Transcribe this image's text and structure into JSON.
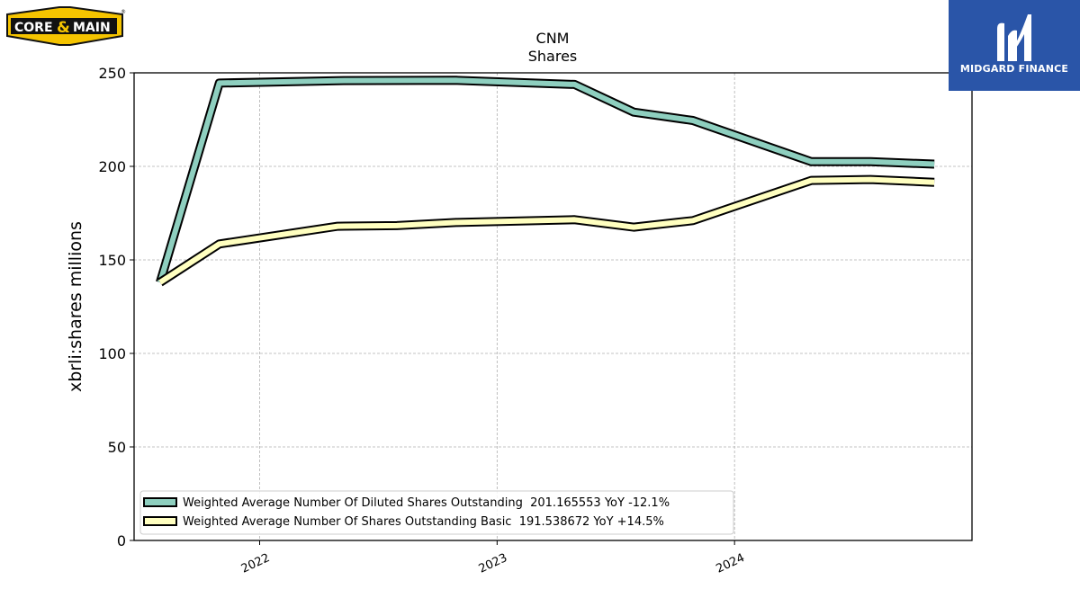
{
  "logos": {
    "left": {
      "text_core": "CORE",
      "text_amp": "&",
      "text_main": "MAIN",
      "registered": "®"
    },
    "right": {
      "text": "MIDGARD FINANCE"
    }
  },
  "colors": {
    "diluted": "#8ecfbf",
    "basic": "#ffffc0",
    "outline": "#000000",
    "grid": "#b0b0b0",
    "logo_yellow": "#f5c400",
    "logo_blue": "#2a55a8"
  },
  "chart_data": {
    "type": "line",
    "title": "CNM",
    "subtitle": "Shares",
    "ylabel": "xbrli:shares millions",
    "xlabel": "",
    "ylim": [
      0,
      250
    ],
    "yticks": [
      0,
      50,
      100,
      150,
      200,
      250
    ],
    "xlim": [
      "2021-06-22",
      "2024-12-31"
    ],
    "xticks": [
      "2022",
      "2023",
      "2024"
    ],
    "grid": true,
    "legend_position": "lower-left",
    "series": [
      {
        "name": "Weighted Average Number Of Diluted Shares Outstanding  201.165553 YoY -12.1%",
        "color": "#8ecfbf",
        "points": [
          [
            "2021-08-01",
            138.0
          ],
          [
            "2021-10-31",
            244.5
          ],
          [
            "2022-05-01",
            245.8
          ],
          [
            "2022-10-30",
            246.0
          ],
          [
            "2023-04-30",
            243.8
          ],
          [
            "2023-07-30",
            229.0
          ],
          [
            "2023-10-29",
            224.5
          ],
          [
            "2024-04-28",
            202.5
          ],
          [
            "2024-07-28",
            202.5
          ],
          [
            "2024-11-03",
            201.2
          ]
        ]
      },
      {
        "name": "Weighted Average Number Of Shares Outstanding Basic  191.538672 YoY +14.5%",
        "color": "#ffffc0",
        "points": [
          [
            "2021-08-01",
            138.0
          ],
          [
            "2021-10-31",
            158.5
          ],
          [
            "2022-05-01",
            168.0
          ],
          [
            "2022-07-31",
            168.3
          ],
          [
            "2022-10-30",
            170.0
          ],
          [
            "2023-04-30",
            171.5
          ],
          [
            "2023-07-30",
            167.5
          ],
          [
            "2023-10-29",
            171.0
          ],
          [
            "2024-04-28",
            192.5
          ],
          [
            "2024-07-28",
            193.0
          ],
          [
            "2024-11-03",
            191.5
          ]
        ]
      }
    ]
  }
}
